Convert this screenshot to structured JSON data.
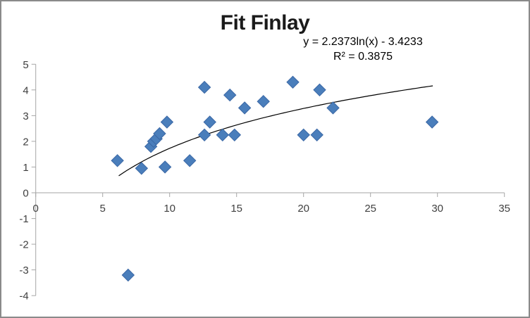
{
  "frame": {
    "border_color": "#8A8A8A",
    "background": "#FFFFFF"
  },
  "chart_data": {
    "type": "scatter",
    "title": "Fit Finlay",
    "xlabel": "",
    "ylabel": "",
    "xlim": [
      0,
      35
    ],
    "ylim": [
      -4,
      5
    ],
    "x_ticks": [
      0,
      5,
      10,
      15,
      20,
      25,
      30,
      35
    ],
    "y_ticks": [
      -4,
      -3,
      -2,
      -1,
      0,
      1,
      2,
      3,
      4,
      5
    ],
    "grid": false,
    "legend": null,
    "points": [
      [
        6.1,
        1.25
      ],
      [
        6.9,
        -3.2
      ],
      [
        7.9,
        0.95
      ],
      [
        8.6,
        1.8
      ],
      [
        8.8,
        2.0
      ],
      [
        9.0,
        2.1
      ],
      [
        9.25,
        2.3
      ],
      [
        9.65,
        1.0
      ],
      [
        9.8,
        2.75
      ],
      [
        11.5,
        1.25
      ],
      [
        12.6,
        2.25
      ],
      [
        12.6,
        4.1
      ],
      [
        13.0,
        2.75
      ],
      [
        13.95,
        2.25
      ],
      [
        14.5,
        3.8
      ],
      [
        14.85,
        2.25
      ],
      [
        15.6,
        3.3
      ],
      [
        17.0,
        3.55
      ],
      [
        19.2,
        4.3
      ],
      [
        20.0,
        2.25
      ],
      [
        21.0,
        2.25
      ],
      [
        21.2,
        4.0
      ],
      [
        22.2,
        3.3
      ],
      [
        29.6,
        2.75
      ]
    ],
    "trendline_label": {
      "equation": "y = 2.2373ln(x) - 3.4233",
      "r_squared": "R² = 0.3875"
    },
    "trendline": {
      "type": "logarithmic",
      "a": 2.2373,
      "b": -3.4233,
      "x_start": 6.2,
      "x_end": 29.65,
      "color": "#000000"
    },
    "marker": {
      "shape": "diamond",
      "fill": "#4A7EBB",
      "stroke": "#3A67A5",
      "size": 17
    },
    "axis_color": "#A6A6A6",
    "tick_label_color": "#404040"
  }
}
